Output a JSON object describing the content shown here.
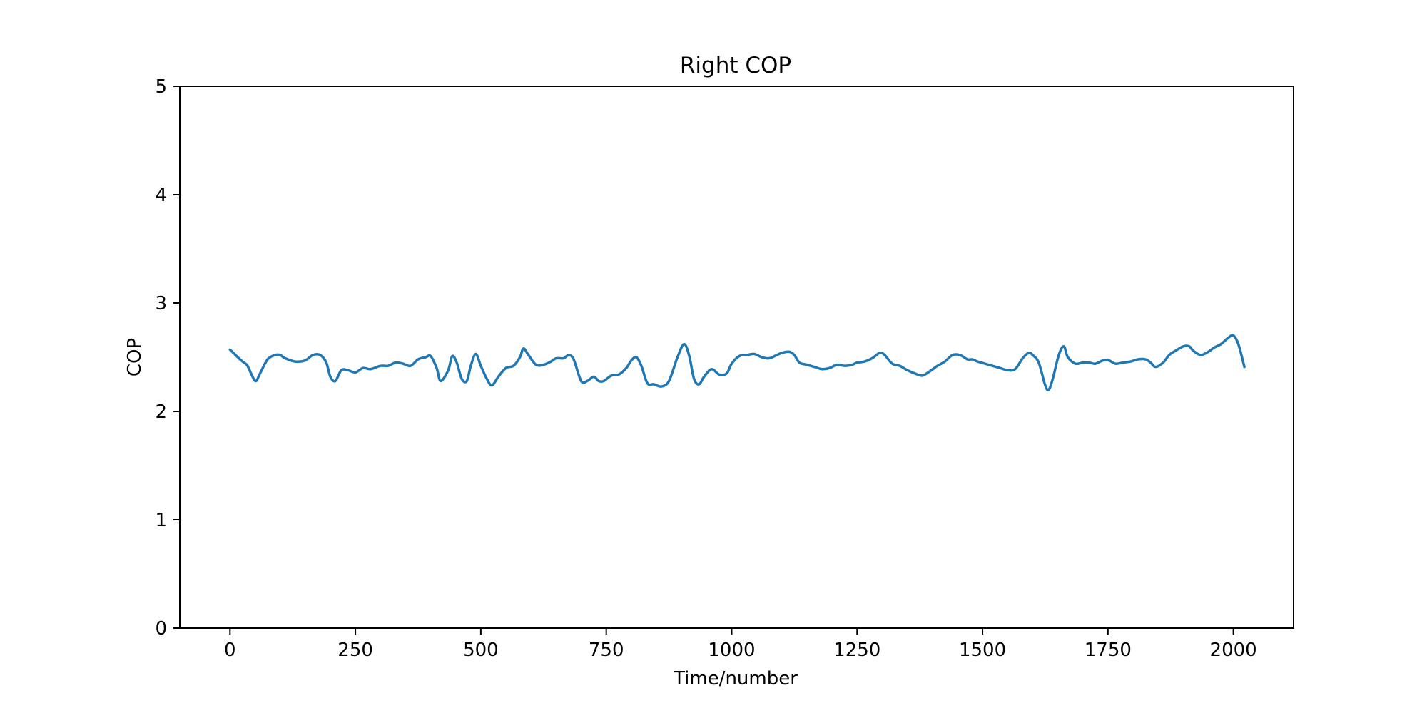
{
  "chart_data": {
    "type": "line",
    "title": "Right COP",
    "xlabel": "Time/number",
    "ylabel": "COP",
    "xlim": [
      -100,
      2120
    ],
    "ylim": [
      0,
      5
    ],
    "x_ticks": [
      0,
      250,
      500,
      750,
      1000,
      1250,
      1500,
      1750,
      2000
    ],
    "y_ticks": [
      0,
      1,
      2,
      3,
      4,
      5
    ],
    "grid": false,
    "color": "#1f77b4",
    "series": [
      {
        "x": [
          0,
          20,
          28,
          35,
          45,
          52,
          60,
          75,
          90,
          100,
          110,
          130,
          150,
          165,
          180,
          192,
          200,
          210,
          222,
          235,
          250,
          265,
          280,
          300,
          315,
          330,
          345,
          360,
          375,
          390,
          400,
          412,
          420,
          435,
          443,
          452,
          462,
          472,
          480,
          490,
          500,
          512,
          522,
          535,
          550,
          565,
          578,
          585,
          595,
          610,
          625,
          640,
          650,
          665,
          675,
          685,
          700,
          712,
          725,
          735,
          745,
          760,
          775,
          790,
          800,
          810,
          820,
          832,
          845,
          860,
          875,
          892,
          905,
          915,
          925,
          935,
          945,
          960,
          975,
          990,
          1000,
          1015,
          1030,
          1045,
          1060,
          1075,
          1090,
          1100,
          1115,
          1125,
          1135,
          1150,
          1165,
          1180,
          1195,
          1210,
          1225,
          1240,
          1250,
          1265,
          1280,
          1295,
          1305,
          1320,
          1335,
          1350,
          1365,
          1380,
          1395,
          1410,
          1425,
          1440,
          1455,
          1470,
          1480,
          1490,
          1505,
          1520,
          1535,
          1550,
          1565,
          1580,
          1592,
          1600,
          1612,
          1625,
          1632,
          1640,
          1652,
          1662,
          1670,
          1685,
          1700,
          1712,
          1725,
          1740,
          1752,
          1765,
          1780,
          1795,
          1810,
          1825,
          1835,
          1845,
          1860,
          1872,
          1885,
          1900,
          1912,
          1920,
          1935,
          1950,
          1962,
          1975,
          1990,
          2000,
          2010,
          2022
        ],
        "y": [
          2.57,
          2.48,
          2.45,
          2.42,
          2.32,
          2.28,
          2.35,
          2.48,
          2.52,
          2.52,
          2.49,
          2.46,
          2.47,
          2.52,
          2.52,
          2.45,
          2.32,
          2.28,
          2.38,
          2.38,
          2.36,
          2.4,
          2.39,
          2.42,
          2.42,
          2.45,
          2.44,
          2.42,
          2.48,
          2.5,
          2.51,
          2.4,
          2.28,
          2.38,
          2.51,
          2.45,
          2.3,
          2.28,
          2.42,
          2.53,
          2.42,
          2.3,
          2.24,
          2.32,
          2.4,
          2.42,
          2.5,
          2.58,
          2.52,
          2.43,
          2.43,
          2.46,
          2.49,
          2.49,
          2.52,
          2.48,
          2.28,
          2.28,
          2.32,
          2.28,
          2.28,
          2.33,
          2.34,
          2.4,
          2.47,
          2.5,
          2.42,
          2.26,
          2.25,
          2.23,
          2.28,
          2.5,
          2.62,
          2.52,
          2.3,
          2.25,
          2.32,
          2.39,
          2.34,
          2.35,
          2.44,
          2.51,
          2.52,
          2.53,
          2.5,
          2.49,
          2.52,
          2.54,
          2.55,
          2.52,
          2.45,
          2.43,
          2.41,
          2.39,
          2.4,
          2.43,
          2.42,
          2.43,
          2.45,
          2.46,
          2.49,
          2.54,
          2.52,
          2.44,
          2.42,
          2.38,
          2.35,
          2.33,
          2.37,
          2.42,
          2.46,
          2.52,
          2.52,
          2.48,
          2.48,
          2.46,
          2.44,
          2.42,
          2.4,
          2.38,
          2.39,
          2.49,
          2.54,
          2.52,
          2.45,
          2.24,
          2.2,
          2.3,
          2.52,
          2.6,
          2.5,
          2.44,
          2.45,
          2.45,
          2.44,
          2.47,
          2.47,
          2.44,
          2.45,
          2.46,
          2.48,
          2.48,
          2.45,
          2.41,
          2.45,
          2.52,
          2.56,
          2.6,
          2.6,
          2.56,
          2.52,
          2.55,
          2.59,
          2.62,
          2.68,
          2.7,
          2.62,
          2.41
        ]
      }
    ]
  }
}
